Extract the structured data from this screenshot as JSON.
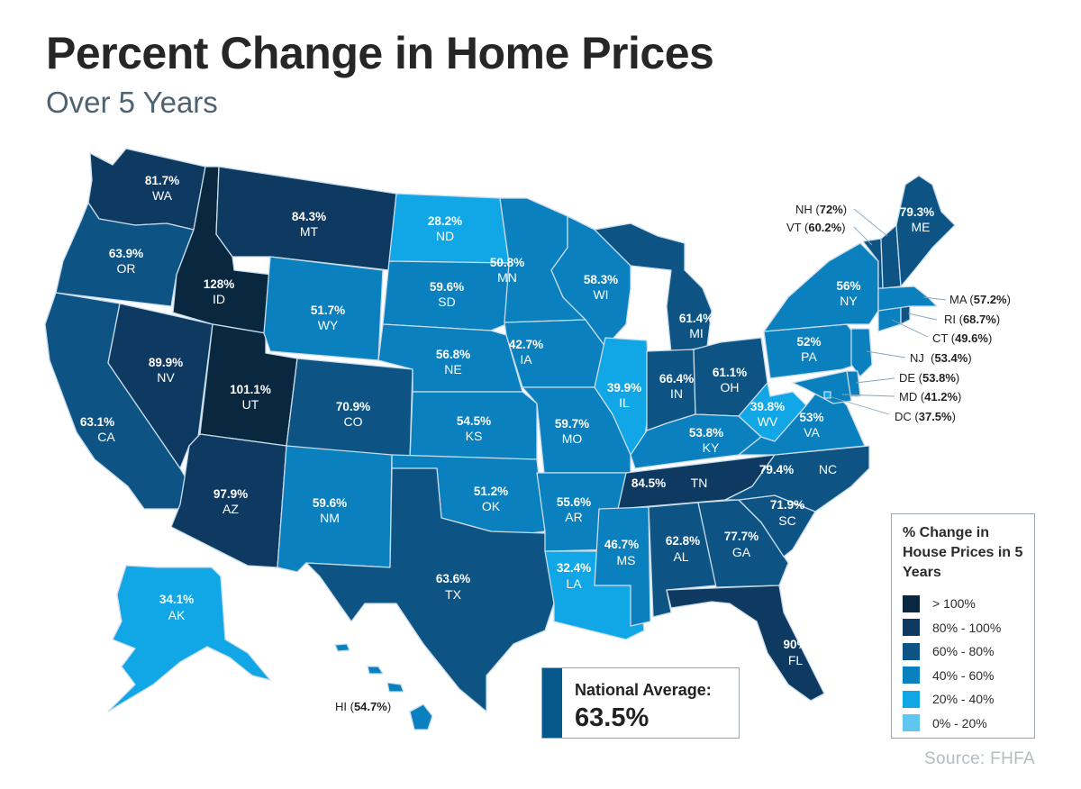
{
  "header": {
    "title": "Percent Change in Home Prices",
    "subtitle": "Over 5 Years"
  },
  "colors": {
    "gt100": "#0a2740",
    "r80_100": "#0e3a62",
    "r60_80": "#0d5485",
    "r40_60": "#0b80bf",
    "r20_40": "#11a7e6",
    "r0_20": "#5ec6ef",
    "border": "#c8dcea"
  },
  "states": {
    "WA": {
      "value": "81.7%",
      "code": "WA",
      "bucket": "r80_100"
    },
    "OR": {
      "value": "63.9%",
      "code": "OR",
      "bucket": "r60_80"
    },
    "CA": {
      "value": "63.1%",
      "code": "CA",
      "bucket": "r60_80"
    },
    "ID": {
      "value": "128%",
      "code": "ID",
      "bucket": "gt100"
    },
    "NV": {
      "value": "89.9%",
      "code": "NV",
      "bucket": "r80_100"
    },
    "UT": {
      "value": "101.1%",
      "code": "UT",
      "bucket": "gt100"
    },
    "AZ": {
      "value": "97.9%",
      "code": "AZ",
      "bucket": "r80_100"
    },
    "MT": {
      "value": "84.3%",
      "code": "MT",
      "bucket": "r80_100"
    },
    "WY": {
      "value": "51.7%",
      "code": "WY",
      "bucket": "r40_60"
    },
    "CO": {
      "value": "70.9%",
      "code": "CO",
      "bucket": "r60_80"
    },
    "NM": {
      "value": "59.6%",
      "code": "NM",
      "bucket": "r40_60"
    },
    "ND": {
      "value": "28.2%",
      "code": "ND",
      "bucket": "r20_40"
    },
    "SD": {
      "value": "59.6%",
      "code": "SD",
      "bucket": "r40_60"
    },
    "NE": {
      "value": "56.8%",
      "code": "NE",
      "bucket": "r40_60"
    },
    "KS": {
      "value": "54.5%",
      "code": "KS",
      "bucket": "r40_60"
    },
    "OK": {
      "value": "51.2%",
      "code": "OK",
      "bucket": "r40_60"
    },
    "TX": {
      "value": "63.6%",
      "code": "TX",
      "bucket": "r60_80"
    },
    "MN": {
      "value": "50.8%",
      "code": "MN",
      "bucket": "r40_60"
    },
    "IA": {
      "value": "42.7%",
      "code": "IA",
      "bucket": "r40_60"
    },
    "MO": {
      "value": "59.7%",
      "code": "MO",
      "bucket": "r40_60"
    },
    "AR": {
      "value": "55.6%",
      "code": "AR",
      "bucket": "r40_60"
    },
    "LA": {
      "value": "32.4%",
      "code": "LA",
      "bucket": "r20_40"
    },
    "WI": {
      "value": "58.3%",
      "code": "WI",
      "bucket": "r40_60"
    },
    "IL": {
      "value": "39.9%",
      "code": "IL",
      "bucket": "r20_40"
    },
    "MI": {
      "value": "61.4%",
      "code": "MI",
      "bucket": "r60_80"
    },
    "IN": {
      "value": "66.4%",
      "code": "IN",
      "bucket": "r60_80"
    },
    "OH": {
      "value": "61.1%",
      "code": "OH",
      "bucket": "r60_80"
    },
    "KY": {
      "value": "53.8%",
      "code": "KY",
      "bucket": "r40_60"
    },
    "TN": {
      "value": "84.5%",
      "code": "TN",
      "bucket": "r80_100"
    },
    "MS": {
      "value": "46.7%",
      "code": "MS",
      "bucket": "r40_60"
    },
    "AL": {
      "value": "62.8%",
      "code": "AL",
      "bucket": "r60_80"
    },
    "GA": {
      "value": "77.7%",
      "code": "GA",
      "bucket": "r60_80"
    },
    "FL": {
      "value": "90%",
      "code": "FL",
      "bucket": "r80_100"
    },
    "SC": {
      "value": "71.9%",
      "code": "SC",
      "bucket": "r60_80"
    },
    "NC": {
      "value": "79.4%",
      "code": "NC",
      "bucket": "r60_80"
    },
    "VA": {
      "value": "53%",
      "code": "VA",
      "bucket": "r40_60"
    },
    "WV": {
      "value": "39.8%",
      "code": "WV",
      "bucket": "r20_40"
    },
    "PA": {
      "value": "52%",
      "code": "PA",
      "bucket": "r40_60"
    },
    "NY": {
      "value": "56%",
      "code": "NY",
      "bucket": "r40_60"
    },
    "ME": {
      "value": "79.3%",
      "code": "ME",
      "bucket": "r60_80"
    },
    "AK": {
      "value": "34.1%",
      "code": "AK",
      "bucket": "r20_40"
    },
    "HI": {
      "value": "54.7%",
      "code": "HI",
      "bucket": "r40_60"
    },
    "NH": {
      "value": "72%",
      "code": "NH",
      "bucket": "r60_80"
    },
    "VT": {
      "value": "60.2%",
      "code": "VT",
      "bucket": "r60_80"
    },
    "MA": {
      "value": "57.2%",
      "code": "MA",
      "bucket": "r40_60"
    },
    "RI": {
      "value": "68.7%",
      "code": "RI",
      "bucket": "r60_80"
    },
    "CT": {
      "value": "49.6%",
      "code": "CT",
      "bucket": "r40_60"
    },
    "NJ": {
      "value": "53.4%",
      "code": "NJ",
      "bucket": "r40_60"
    },
    "DE": {
      "value": "53.8%",
      "code": "DE",
      "bucket": "r40_60"
    },
    "MD": {
      "value": "41.2%",
      "code": "MD",
      "bucket": "r40_60"
    },
    "DC": {
      "value": "37.5%",
      "code": "DC",
      "bucket": "r20_40"
    }
  },
  "legend": {
    "title": "% Change in House Prices in 5 Years",
    "items": [
      {
        "label": "> 100%",
        "color": "#0a2740"
      },
      {
        "label": "80% - 100%",
        "color": "#0e3a62"
      },
      {
        "label": "60% - 80%",
        "color": "#0d5485"
      },
      {
        "label": "40% - 60%",
        "color": "#0b80bf"
      },
      {
        "label": "20% - 40%",
        "color": "#11a7e6"
      },
      {
        "label": "0% - 20%",
        "color": "#5ec6ef"
      }
    ]
  },
  "national": {
    "label": "National Average:",
    "value": "63.5%"
  },
  "source": "Source: FHFA"
}
